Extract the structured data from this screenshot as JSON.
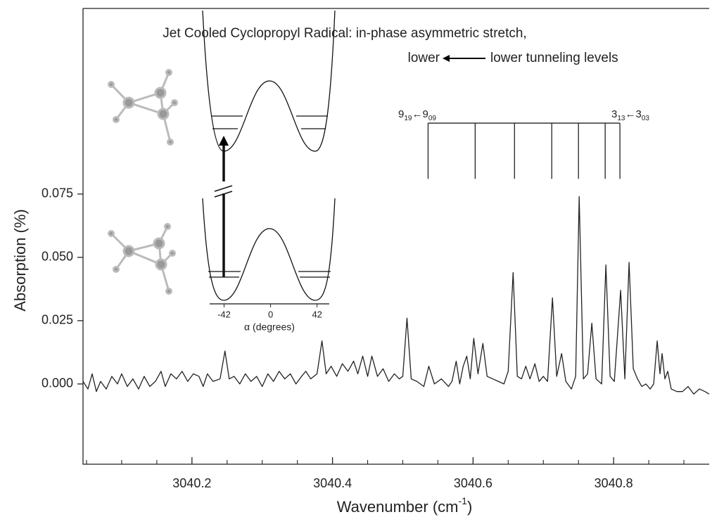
{
  "chart_data": {
    "type": "line",
    "title": "Jet Cooled Cyclopropyl Radical:  in-phase asymmetric stretch,",
    "subtitle_parts": [
      "lower",
      "lower tunneling levels"
    ],
    "xlabel_parts": [
      "Wavenumber (cm",
      "-1",
      ")"
    ],
    "ylabel": "Absorption (%)",
    "color": "#222222",
    "xlim": [
      3040.045,
      3040.936
    ],
    "ylim": [
      -0.0317,
      0.1483
    ],
    "xticks": [
      3040.2,
      3040.4,
      3040.6,
      3040.8
    ],
    "xminor_ticks": [
      3040.05,
      3040.1,
      3040.15,
      3040.25,
      3040.3,
      3040.35,
      3040.45,
      3040.5,
      3040.55,
      3040.65,
      3040.7,
      3040.75,
      3040.85,
      3040.9
    ],
    "yticks": [
      {
        "value": 0,
        "label": "0.000"
      },
      {
        "value": 0.025,
        "label": "0.025"
      },
      {
        "value": 0.05,
        "label": "0.050"
      },
      {
        "value": 0.075,
        "label": "0.075"
      }
    ],
    "x": [
      3040.045,
      3040.052,
      3040.058,
      3040.064,
      3040.07,
      3040.078,
      3040.086,
      3040.094,
      3040.1,
      3040.108,
      3040.116,
      3040.124,
      3040.132,
      3040.14,
      3040.148,
      3040.156,
      3040.162,
      3040.17,
      3040.178,
      3040.186,
      3040.194,
      3040.202,
      3040.21,
      3040.216,
      3040.222,
      3040.23,
      3040.24,
      3040.247,
      3040.253,
      3040.26,
      3040.268,
      3040.276,
      3040.284,
      3040.292,
      3040.3,
      3040.308,
      3040.316,
      3040.324,
      3040.332,
      3040.34,
      3040.348,
      3040.356,
      3040.362,
      3040.369,
      3040.378,
      3040.385,
      3040.391,
      3040.398,
      3040.406,
      3040.414,
      3040.422,
      3040.43,
      3040.436,
      3040.443,
      3040.45,
      3040.456,
      3040.464,
      3040.472,
      3040.48,
      3040.488,
      3040.495,
      3040.5,
      3040.506,
      3040.512,
      3040.52,
      3040.53,
      3040.537,
      3040.545,
      3040.555,
      3040.565,
      3040.57,
      3040.576,
      3040.581,
      3040.586,
      3040.591,
      3040.596,
      3040.601,
      3040.607,
      3040.614,
      3040.62,
      3040.628,
      3040.636,
      3040.644,
      3040.65,
      3040.657,
      3040.663,
      3040.669,
      3040.675,
      3040.681,
      3040.688,
      3040.694,
      3040.7,
      3040.706,
      3040.713,
      3040.719,
      3040.726,
      3040.732,
      3040.74,
      3040.746,
      3040.751,
      3040.757,
      3040.763,
      3040.769,
      3040.775,
      3040.783,
      3040.789,
      3040.795,
      3040.801,
      3040.81,
      3040.816,
      3040.822,
      3040.828,
      3040.834,
      3040.84,
      3040.846,
      3040.852,
      3040.857,
      3040.862,
      3040.866,
      3040.869,
      3040.873,
      3040.877,
      3040.882,
      3040.89,
      3040.898,
      3040.906,
      3040.914,
      3040.922,
      3040.93,
      3040.936
    ],
    "values": [
      0.001,
      -0.002,
      0.004,
      -0.003,
      0.001,
      -0.002,
      0.003,
      0.0,
      0.004,
      -0.001,
      0.002,
      -0.002,
      0.003,
      -0.001,
      0.001,
      0.005,
      -0.001,
      0.004,
      0.002,
      0.005,
      0.001,
      0.004,
      0.003,
      -0.001,
      0.004,
      0.001,
      0.002,
      0.013,
      0.002,
      0.003,
      0.0,
      0.004,
      0.001,
      0.003,
      -0.001,
      0.004,
      0.001,
      0.005,
      0.002,
      0.004,
      0.0,
      0.003,
      0.005,
      0.002,
      0.004,
      0.017,
      0.004,
      0.007,
      0.003,
      0.008,
      0.005,
      0.009,
      0.004,
      0.011,
      0.003,
      0.011,
      0.003,
      0.006,
      0.001,
      0.004,
      0.002,
      0.003,
      0.026,
      0.002,
      0.001,
      -0.001,
      0.007,
      0.0,
      0.002,
      -0.001,
      0.001,
      0.009,
      0.0,
      0.007,
      0.011,
      0.002,
      0.018,
      0.004,
      0.016,
      0.003,
      0.002,
      0.001,
      0.0,
      0.005,
      0.044,
      0.003,
      0.002,
      0.007,
      0.002,
      0.008,
      0.001,
      0.003,
      0.001,
      0.034,
      0.003,
      0.012,
      0.001,
      -0.002,
      0.003,
      0.074,
      0.002,
      0.004,
      0.024,
      0.002,
      0.0,
      0.047,
      0.003,
      0.001,
      0.037,
      0.002,
      0.048,
      0.006,
      0.002,
      -0.001,
      0.0,
      -0.002,
      0.0,
      0.017,
      0.004,
      0.012,
      0.002,
      0.005,
      -0.002,
      -0.003,
      -0.003,
      -0.001,
      -0.004,
      -0.002,
      -0.003,
      -0.004
    ],
    "assignment_lines": [
      3040.536,
      3040.603,
      3040.659,
      3040.712,
      3040.75,
      3040.788,
      3040.809
    ],
    "assignment_top": 0.103,
    "assignment_bottom": 0.081,
    "assignment_left": [
      "9",
      "19",
      "←9",
      "09"
    ],
    "assignment_right": [
      "3",
      "13",
      "←3",
      "03"
    ],
    "inset": {
      "xlabel": "α (degrees)",
      "xlim": [
        -55,
        53
      ],
      "xticks": [
        -42,
        0,
        42
      ]
    }
  }
}
